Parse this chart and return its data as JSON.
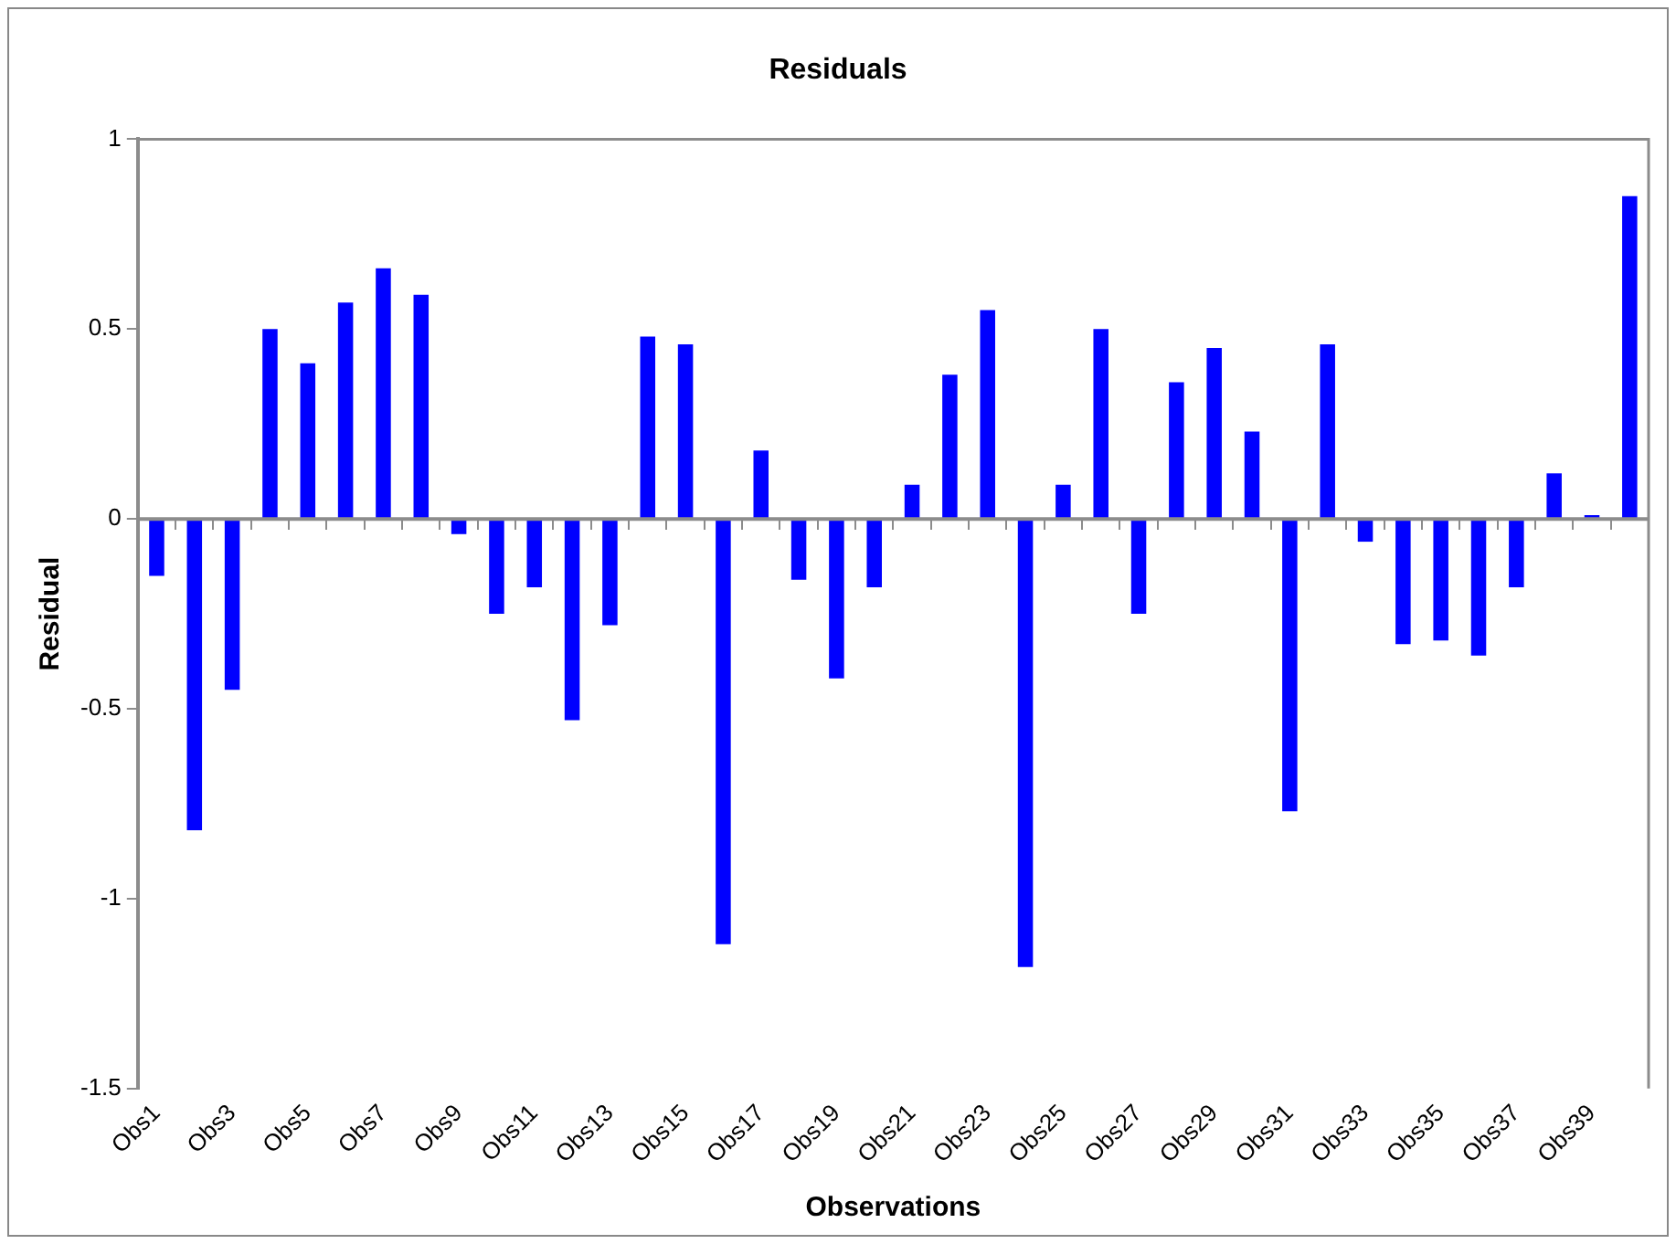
{
  "chart_data": {
    "type": "bar",
    "title": "Residuals",
    "xlabel": "Observations",
    "ylabel": "Residual",
    "categories": [
      "Obs1",
      null,
      "Obs3",
      null,
      "Obs5",
      null,
      "Obs7",
      null,
      "Obs9",
      null,
      "Obs11",
      null,
      "Obs13",
      null,
      "Obs15",
      null,
      "Obs17",
      null,
      "Obs19",
      null,
      "Obs21",
      null,
      "Obs23",
      null,
      "Obs25",
      null,
      "Obs27",
      null,
      "Obs29",
      null,
      "Obs31",
      null,
      "Obs33",
      null,
      "Obs35",
      null,
      "Obs37",
      null,
      "Obs39",
      null
    ],
    "values": [
      -0.15,
      -0.82,
      -0.45,
      0.5,
      0.41,
      0.57,
      0.66,
      0.59,
      -0.04,
      -0.25,
      -0.18,
      -0.53,
      -0.28,
      0.48,
      0.46,
      -1.12,
      0.18,
      -0.16,
      -0.42,
      -0.18,
      0.09,
      0.38,
      0.55,
      -1.18,
      0.09,
      0.5,
      -0.25,
      0.36,
      0.45,
      0.23,
      -0.77,
      0.46,
      -0.06,
      -0.33,
      -0.32,
      -0.36,
      -0.18,
      0.12,
      0.01,
      0.85
    ],
    "color": "#0000ff",
    "ylim": [
      -1.5,
      1
    ],
    "yticks": [
      -1.5,
      -1,
      -0.5,
      0,
      0.5,
      1
    ],
    "ref_lines": [
      {
        "axis": "y",
        "value": 0,
        "color": "#8c8c8c"
      }
    ],
    "grid": false,
    "legend": false
  }
}
